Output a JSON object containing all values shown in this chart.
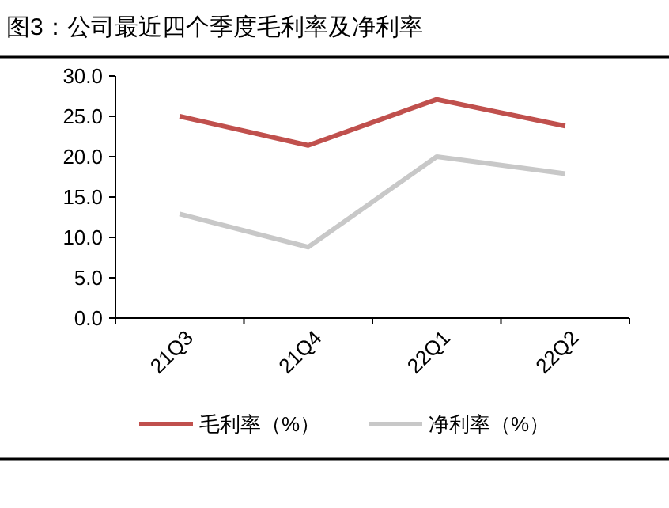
{
  "chart_data": {
    "type": "line",
    "title": "图3：公司最近四个季度毛利率及净利率",
    "categories": [
      "21Q3",
      "21Q4",
      "22Q1",
      "22Q2"
    ],
    "series": [
      {
        "name": "毛利率（%）",
        "color": "#c0504d",
        "values": [
          25.0,
          21.4,
          27.1,
          23.8
        ]
      },
      {
        "name": "净利率（%）",
        "color": "#c8c8c8",
        "values": [
          12.9,
          8.8,
          20.0,
          17.9
        ]
      }
    ],
    "ylim": [
      0,
      30
    ],
    "yticks": [
      {
        "value": 0,
        "label": "0.0"
      },
      {
        "value": 5,
        "label": "5.0"
      },
      {
        "value": 10,
        "label": "10.0"
      },
      {
        "value": 15,
        "label": "15.0"
      },
      {
        "value": 20,
        "label": "20.0"
      },
      {
        "value": 25,
        "label": "25.0"
      },
      {
        "value": 30,
        "label": "30.0"
      }
    ],
    "grid": false,
    "legend": "bottom",
    "marker": "none",
    "line_style": "solid"
  }
}
